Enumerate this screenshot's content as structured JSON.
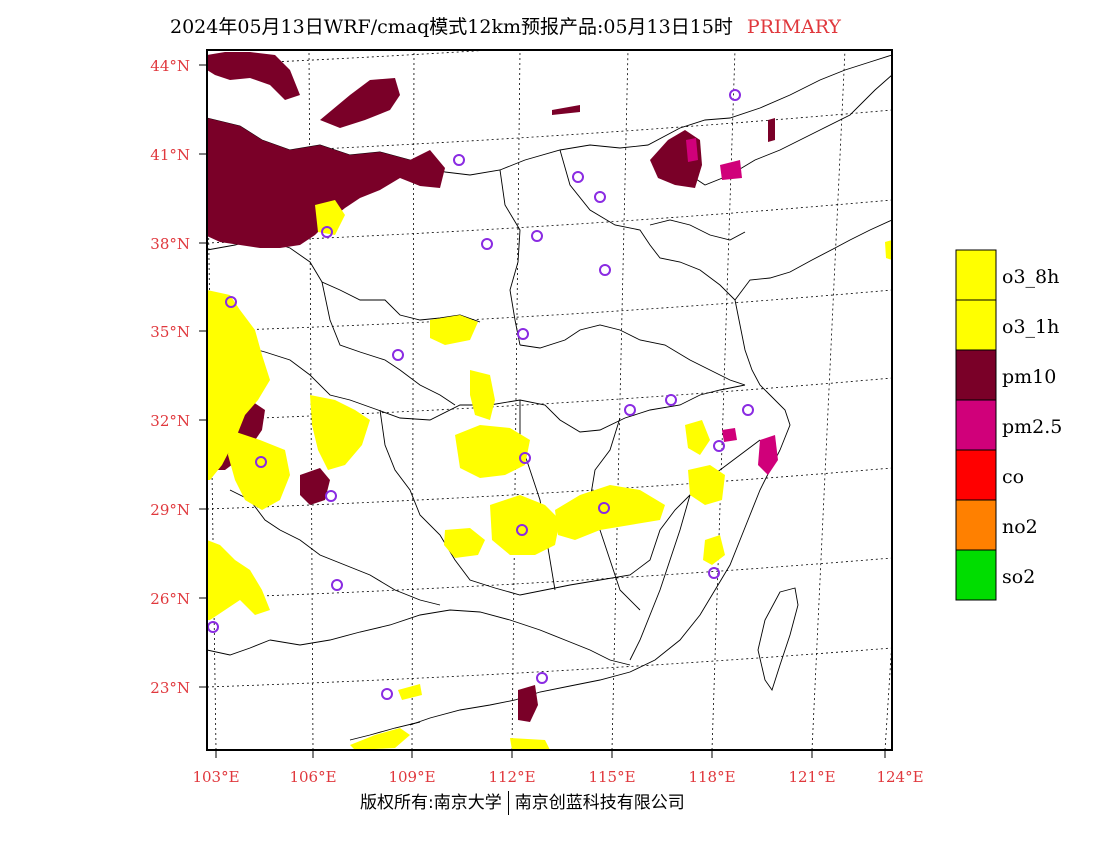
{
  "title": {
    "main": "2024年05月13日WRF/cmaq模式12km预报产品:05月13日15时",
    "tag": "PRIMARY"
  },
  "lat_ticks": [
    "44°N",
    "41°N",
    "38°N",
    "35°N",
    "32°N",
    "29°N",
    "26°N",
    "23°N"
  ],
  "lon_ticks": [
    "103°E",
    "106°E",
    "109°E",
    "112°E",
    "115°E",
    "118°E",
    "121°E",
    "124°E"
  ],
  "legend": [
    {
      "label": "o3_8h",
      "color": "#ffff00"
    },
    {
      "label": "o3_1h",
      "color": "#ffff00"
    },
    {
      "label": "pm10",
      "color": "#7a0028"
    },
    {
      "label": "pm2.5",
      "color": "#d0007a"
    },
    {
      "label": "co",
      "color": "#ff0000"
    },
    {
      "label": "no2",
      "color": "#ff8000"
    },
    {
      "label": "so2",
      "color": "#00dd00"
    }
  ],
  "footer": {
    "left": "版权所有:南京大学",
    "right": "南京创蓝科技有限公司"
  },
  "colors": {
    "o3": "#ffff00",
    "pm10": "#7a0028",
    "pm25": "#d0007a",
    "station_ring": "#8a2be2",
    "axis_text": "#e0383d",
    "grid": "#000000"
  }
}
